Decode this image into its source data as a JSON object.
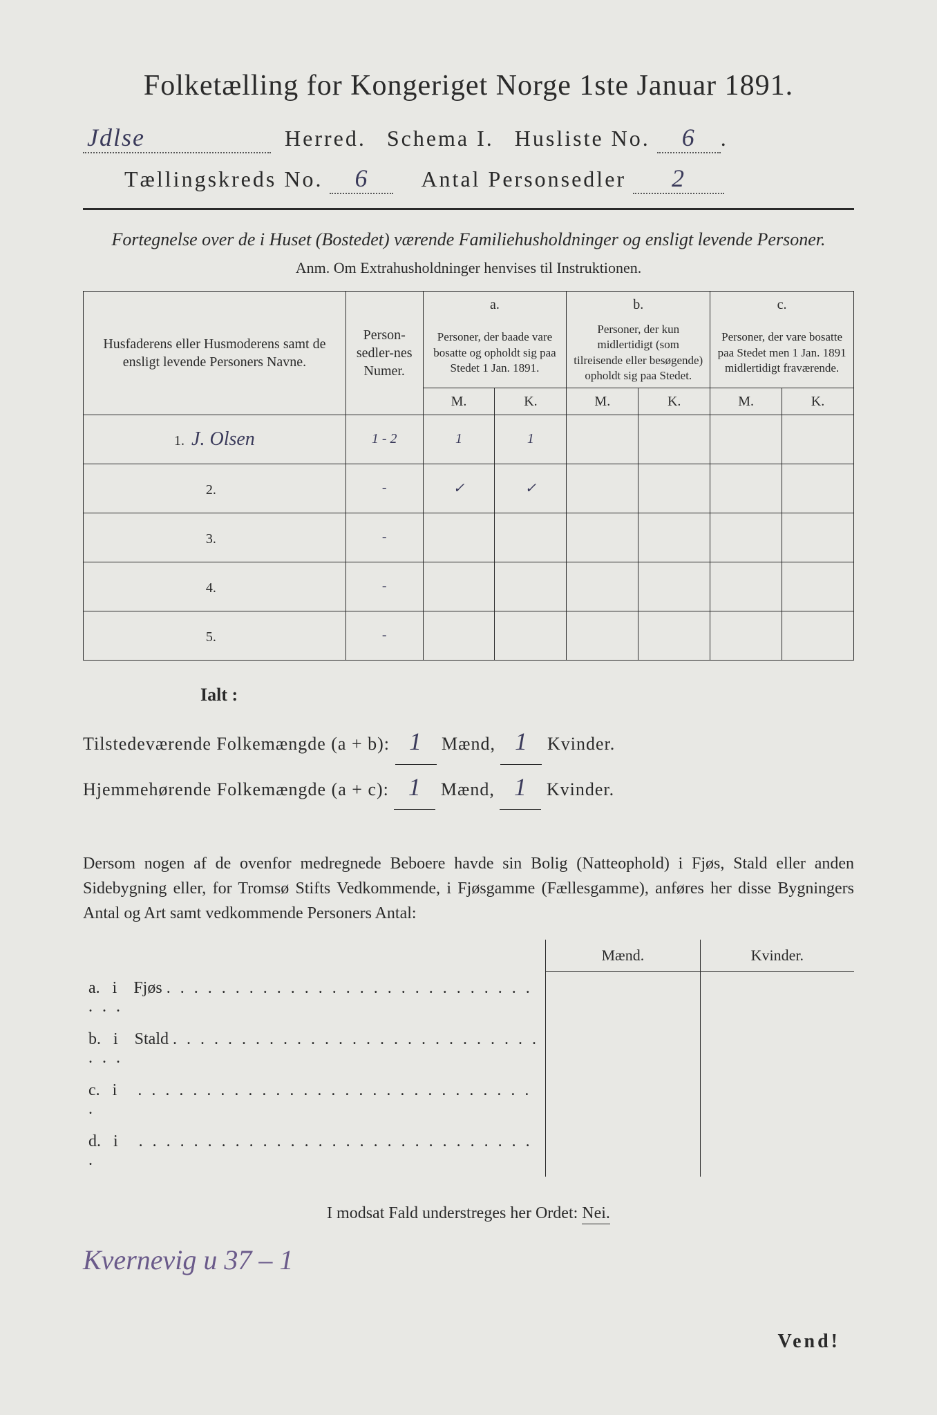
{
  "title": "Folketælling for Kongeriget Norge 1ste Januar 1891.",
  "header": {
    "herred_value": "Jdlse",
    "herred_label": "Herred.",
    "schema_label": "Schema I.",
    "husliste_label": "Husliste No.",
    "husliste_value": "6",
    "kreds_label": "Tællingskreds No.",
    "kreds_value": "6",
    "antal_label": "Antal Personsedler",
    "antal_value": "2"
  },
  "subtitle": "Fortegnelse over de i Huset (Bostedet) værende Familiehusholdninger og ensligt levende Personer.",
  "anm": "Anm.  Om Extrahusholdninger henvises til Instruktionen.",
  "table": {
    "col_name": "Husfaderens eller Husmoderens samt de ensligt levende Personers Navne.",
    "col_numer": "Person-sedler-nes Numer.",
    "col_a_top": "a.",
    "col_a": "Personer, der baade vare bosatte og opholdt sig paa Stedet 1 Jan. 1891.",
    "col_b_top": "b.",
    "col_b": "Personer, der kun midlertidigt (som tilreisende eller besøgende) opholdt sig paa Stedet.",
    "col_c_top": "c.",
    "col_c": "Personer, der vare bosatte paa Stedet men 1 Jan. 1891 midlertidigt fraværende.",
    "m": "M.",
    "k": "K.",
    "rows": [
      {
        "n": "1.",
        "name": "J. Olsen",
        "numer": "1 - 2",
        "am": "1",
        "ak": "1",
        "bm": "",
        "bk": "",
        "cm": "",
        "ck": ""
      },
      {
        "n": "2.",
        "name": "",
        "numer": "-",
        "am": "✓",
        "ak": "✓",
        "bm": "",
        "bk": "",
        "cm": "",
        "ck": ""
      },
      {
        "n": "3.",
        "name": "",
        "numer": "-",
        "am": "",
        "ak": "",
        "bm": "",
        "bk": "",
        "cm": "",
        "ck": ""
      },
      {
        "n": "4.",
        "name": "",
        "numer": "-",
        "am": "",
        "ak": "",
        "bm": "",
        "bk": "",
        "cm": "",
        "ck": ""
      },
      {
        "n": "5.",
        "name": "",
        "numer": "-",
        "am": "",
        "ak": "",
        "bm": "",
        "bk": "",
        "cm": "",
        "ck": ""
      }
    ]
  },
  "ialt": "Ialt :",
  "totals": {
    "line1_label": "Tilstedeværende Folkemængde (a + b):",
    "line1_m": "1",
    "line1_k": "1",
    "line2_label": "Hjemmehørende Folkemængde (a + c):",
    "line2_m": "1",
    "line2_k": "1",
    "maend": "Mænd,",
    "kvinder": "Kvinder."
  },
  "para": "Dersom nogen af de ovenfor medregnede Beboere havde sin Bolig (Natteophold) i Fjøs, Stald eller anden Sidebygning eller, for Tromsø Stifts Vedkommende, i Fjøsgamme (Fællesgamme), anføres her disse Bygningers Antal og Art samt vedkommende Personers Antal:",
  "side": {
    "maend": "Mænd.",
    "kvinder": "Kvinder.",
    "rows": [
      {
        "l": "a.",
        "i": "i",
        "t": "Fjøs"
      },
      {
        "l": "b.",
        "i": "i",
        "t": "Stald"
      },
      {
        "l": "c.",
        "i": "i",
        "t": ""
      },
      {
        "l": "d.",
        "i": "i",
        "t": ""
      }
    ]
  },
  "nei": "I modsat Fald understreges her Ordet:",
  "nei_word": "Nei.",
  "bottom_hand": "Kvernevig u 37 – 1",
  "vend": "Vend!"
}
